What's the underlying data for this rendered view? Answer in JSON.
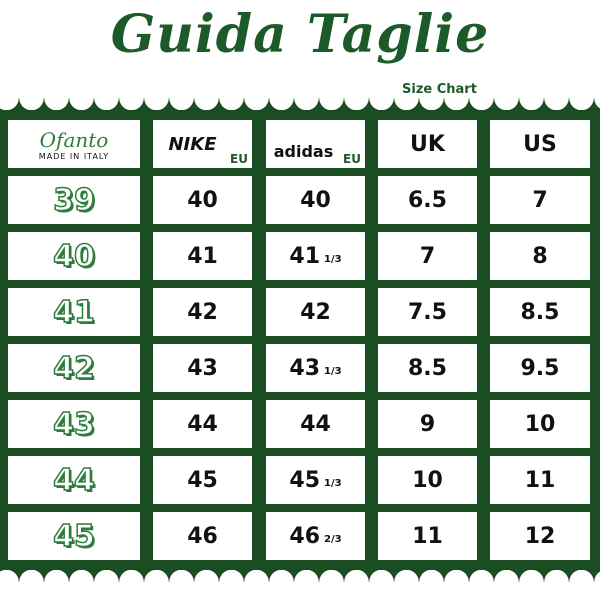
{
  "title": "Guida Taglie",
  "subtitle": "Size Chart",
  "colors": {
    "green": "#1a4d22",
    "text": "#111111"
  },
  "header": {
    "brand_logo": "Ofanto",
    "brand_tagline": "MADE IN ITALY",
    "nike_logo": "NIKE",
    "nike_unit": "EU",
    "adidas_logo": "adidas",
    "adidas_unit": "EU",
    "uk": "UK",
    "us": "US"
  },
  "rows": [
    {
      "ofanto": "39",
      "nike": "40",
      "adidas": "40",
      "adidas_frac": "",
      "uk": "6.5",
      "us": "7"
    },
    {
      "ofanto": "40",
      "nike": "41",
      "adidas": "41",
      "adidas_frac": "1/3",
      "uk": "7",
      "us": "8"
    },
    {
      "ofanto": "41",
      "nike": "42",
      "adidas": "42",
      "adidas_frac": "",
      "uk": "7.5",
      "us": "8.5"
    },
    {
      "ofanto": "42",
      "nike": "43",
      "adidas": "43",
      "adidas_frac": "1/3",
      "uk": "8.5",
      "us": "9.5"
    },
    {
      "ofanto": "43",
      "nike": "44",
      "adidas": "44",
      "adidas_frac": "",
      "uk": "9",
      "us": "10"
    },
    {
      "ofanto": "44",
      "nike": "45",
      "adidas": "45",
      "adidas_frac": "1/3",
      "uk": "10",
      "us": "11"
    },
    {
      "ofanto": "45",
      "nike": "46",
      "adidas": "46",
      "adidas_frac": "2/3",
      "uk": "11",
      "us": "12"
    }
  ]
}
